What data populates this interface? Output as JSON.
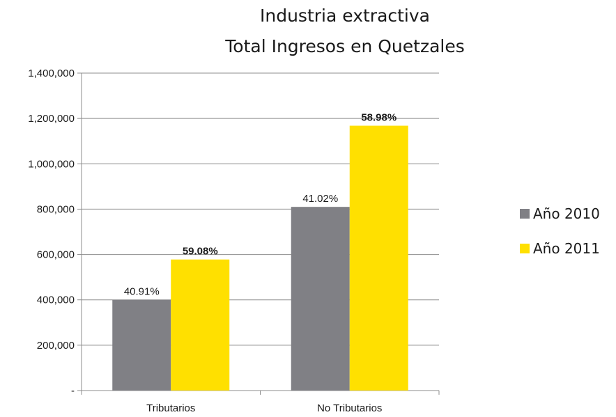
{
  "chart_data": {
    "type": "bar",
    "title": [
      "Industria extractiva",
      "Total Ingresos en Quetzales"
    ],
    "xlabel": "",
    "ylabel": "",
    "categories": [
      "Tributarios",
      "No Tributarios"
    ],
    "series": [
      {
        "name": "Año 2010",
        "color": "#808085",
        "values": [
          400000,
          810000
        ],
        "labels": [
          "40.91%",
          "41.02%"
        ],
        "label_bold": false
      },
      {
        "name": "Año 2011",
        "color": "#ffe000",
        "values": [
          578000,
          1168000
        ],
        "labels": [
          "59.08%",
          "58.98%"
        ],
        "label_bold": true
      }
    ],
    "ylim": [
      0,
      1400000
    ],
    "y_ticks": [
      0,
      200000,
      400000,
      600000,
      800000,
      1000000,
      1200000,
      1400000
    ],
    "y_tick_labels": [
      "-",
      "200,000",
      "400,000",
      "600,000",
      "800,000",
      "1,000,000",
      "1,200,000",
      "1,400,000"
    ],
    "grid": true,
    "legend_position": "right"
  }
}
